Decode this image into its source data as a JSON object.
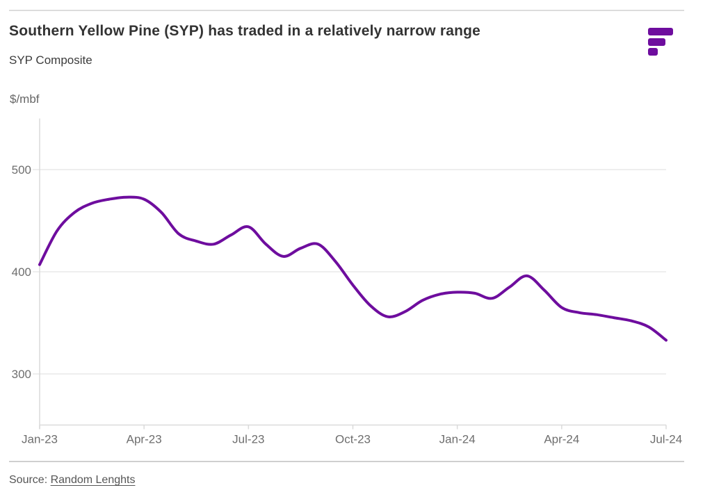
{
  "header": {
    "title": "Southern Yellow Pine (SYP) has traded in a relatively narrow range",
    "subtitle": "SYP Composite"
  },
  "logo": {
    "icon": "fastmarkets-bars-logo",
    "color": "#6e0d9e"
  },
  "chart": {
    "unit_label": "$/mbf"
  },
  "chart_data": {
    "type": "line",
    "title": "Southern Yellow Pine (SYP) has traded in a relatively narrow range",
    "subtitle": "SYP Composite",
    "ylabel": "$/mbf",
    "xlabel": "",
    "grid": "horizontal",
    "legend_position": "none",
    "x_tick_labels": [
      "Jan-23",
      "Apr-23",
      "Jul-23",
      "Oct-23",
      "Jan-24",
      "Apr-24",
      "Jul-24"
    ],
    "y_ticks": [
      500,
      400,
      300
    ],
    "ylim": [
      250,
      550
    ],
    "x_sampling": "semi-monthly from Jan-23 to Jul-24",
    "series": [
      {
        "name": "SYP Composite",
        "color": "#6e0d9e",
        "values": [
          407,
          440,
          458,
          467,
          471,
          473,
          471,
          458,
          437,
          430,
          427,
          436,
          444,
          427,
          415,
          423,
          427,
          410,
          387,
          367,
          356,
          361,
          372,
          378,
          380,
          379,
          374,
          385,
          396,
          382,
          365,
          360,
          358,
          355,
          352,
          346,
          333
        ]
      }
    ]
  },
  "footer": {
    "source_prefix": "Source: ",
    "source_link_text": "Random Lenghts"
  },
  "colors": {
    "accent": "#6e0d9e",
    "gridline": "#e9e9e9",
    "axis": "#dadada",
    "axis_text": "#6e6e6e",
    "title_text": "#333333",
    "source_text": "#555555"
  }
}
